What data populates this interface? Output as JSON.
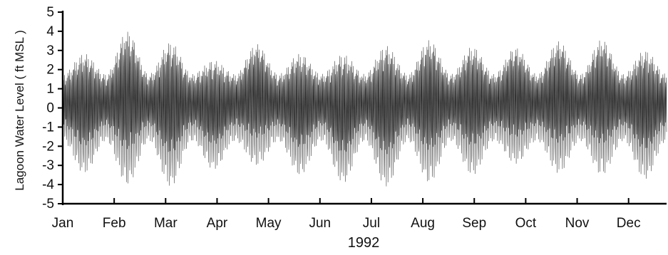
{
  "chart_data": {
    "type": "line",
    "title": "",
    "xlabel": "1992",
    "ylabel": "Lagoon Water Level  ( ft MSL )",
    "x_categories": [
      "Jan",
      "Feb",
      "Mar",
      "Apr",
      "May",
      "Jun",
      "Jul",
      "Aug",
      "Sep",
      "Oct",
      "Nov",
      "Dec"
    ],
    "yticks": [
      "5",
      "4",
      "3",
      "2",
      "1",
      "0",
      "-1",
      "-2",
      "-3",
      "-4",
      "-5"
    ],
    "ylim": [
      -5,
      5
    ],
    "grid": false,
    "legend": "none",
    "series": [
      {
        "description_of_envelope": "spring-neap tidal envelope, approximate peak (spring tide) highs and lows per fortnight",
        "spring_highs": [
          3.3,
          4.6,
          4.0,
          2.9,
          3.8,
          3.3,
          3.3,
          3.8,
          4.1,
          3.7,
          3.6,
          4.0,
          4.1,
          3.5
        ],
        "spring_lows": [
          -3.5,
          -4.1,
          -4.2,
          -3.3,
          -3.1,
          -3.6,
          -4.0,
          -4.2,
          -4.0,
          -3.6,
          -3.0,
          -3.5,
          -3.6,
          -3.8
        ],
        "neap_high": 2.0,
        "neap_low": -1.8,
        "mean": 0.3
      }
    ],
    "color": "#1a1a1a"
  }
}
